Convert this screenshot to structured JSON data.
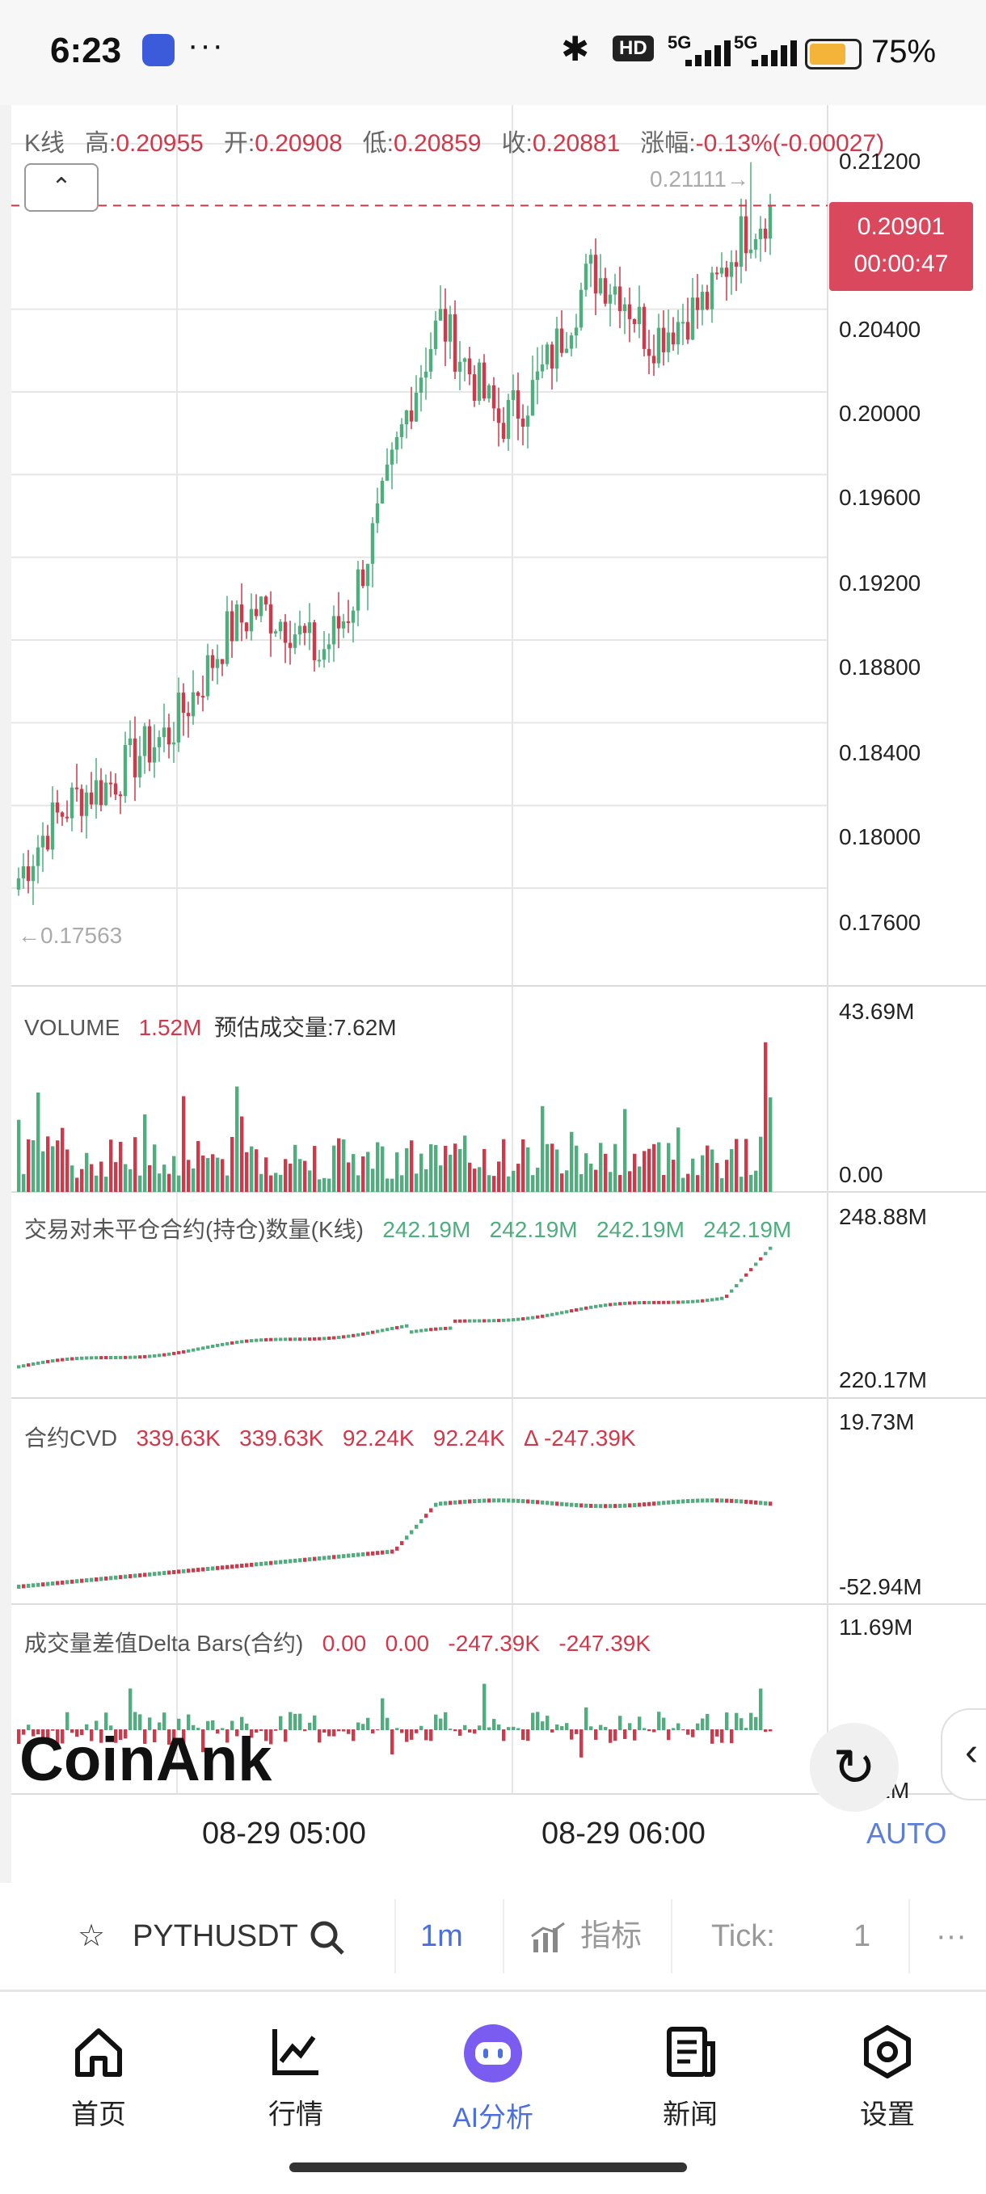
{
  "status_bar": {
    "time": "6:23",
    "dots": "···",
    "hd_label": "HD",
    "signal1": "5G",
    "signal2": "5G",
    "battery_pct": "75%",
    "battery_level": 0.75,
    "icons": [
      "app-badge-icon",
      "bluetooth-icon",
      "hd-voice-icon",
      "signal-icon",
      "battery-icon"
    ]
  },
  "kline": {
    "label": "K线",
    "high_label": "高:",
    "high": "0.20955",
    "open_label": "开:",
    "open": "0.20908",
    "low_label": "低:",
    "low": "0.20859",
    "close_label": "收:",
    "close": "0.20881",
    "change_label": "涨幅:",
    "change": "-0.13%(-0.00027)",
    "max_marker": "0.21111→",
    "min_marker": "←0.17563",
    "current_price": "0.20901",
    "countdown": "00:00:47",
    "collapse_icon": "chevron-up-icon"
  },
  "panels": {
    "volume": {
      "title": "VOLUME",
      "value": "1.52M",
      "estimate": "预估成交量:7.62M",
      "y_max": "43.69M",
      "y_min": "0.00"
    },
    "open_interest": {
      "title": "交易对未平仓合约(持仓)数量(K线)",
      "values": [
        "242.19M",
        "242.19M",
        "242.19M",
        "242.19M"
      ],
      "y_max": "248.88M",
      "y_min": "220.17M"
    },
    "cvd": {
      "title": "合约CVD",
      "values": [
        "339.63K",
        "339.63K",
        "92.24K",
        "92.24K",
        "Δ -247.39K"
      ],
      "y_max": "19.73M",
      "y_min": "-52.94M"
    },
    "delta": {
      "title": "成交量差值Delta Bars(合约)",
      "values": [
        "0.00",
        "0.00",
        "-247.39K",
        "-247.39K"
      ],
      "y_max": "11.69M",
      "y_min": "-7.52M"
    }
  },
  "x_axis": {
    "labels": [
      "08-29 05:00",
      "08-29 06:00"
    ],
    "auto_label": "AUTO"
  },
  "watermark": "CoinAnk",
  "refresh_icon": "refresh-icon",
  "side_arrow_icon": "chevron-left-icon",
  "toolbar": {
    "symbol": "PYTHUSDT",
    "interval": "1m",
    "indicator": "指标",
    "tick_label": "Tick:",
    "tick_value": "1",
    "more": "···"
  },
  "nav": {
    "items": [
      {
        "label": "首页",
        "icon": "home-icon"
      },
      {
        "label": "行情",
        "icon": "market-chart-icon"
      },
      {
        "label": "AI分析",
        "icon": "ai-bot-icon",
        "active": true
      },
      {
        "label": "新闻",
        "icon": "news-icon"
      },
      {
        "label": "设置",
        "icon": "gear-icon"
      }
    ]
  },
  "colors": {
    "up": "#4caf7d",
    "down": "#d1384a",
    "accent": "#4b6fe0",
    "grid": "#e6e6e6"
  },
  "chart_data": {
    "type": "candlestick",
    "symbol": "PYTHUSDT",
    "interval": "1m",
    "ylim": [
      0.17563,
      0.21111
    ],
    "y_ticks": [
      0.212,
      0.204,
      0.2,
      0.196,
      0.192,
      0.188,
      0.184,
      0.18,
      0.176
    ],
    "x_labels": [
      "08-29 05:00",
      "08-29 06:00"
    ],
    "last_price": 0.20901,
    "session_high": 0.21111,
    "session_low": 0.17563,
    "close_trend": [
      0.1765,
      0.179,
      0.1805,
      0.181,
      0.1825,
      0.1835,
      0.1858,
      0.1885,
      0.1895,
      0.1888,
      0.1872,
      0.1895,
      0.194,
      0.1995,
      0.2035,
      0.201,
      0.1985,
      0.1998,
      0.2025,
      0.2058,
      0.205,
      0.2025,
      0.2035,
      0.2045,
      0.2075,
      0.2088
    ]
  }
}
